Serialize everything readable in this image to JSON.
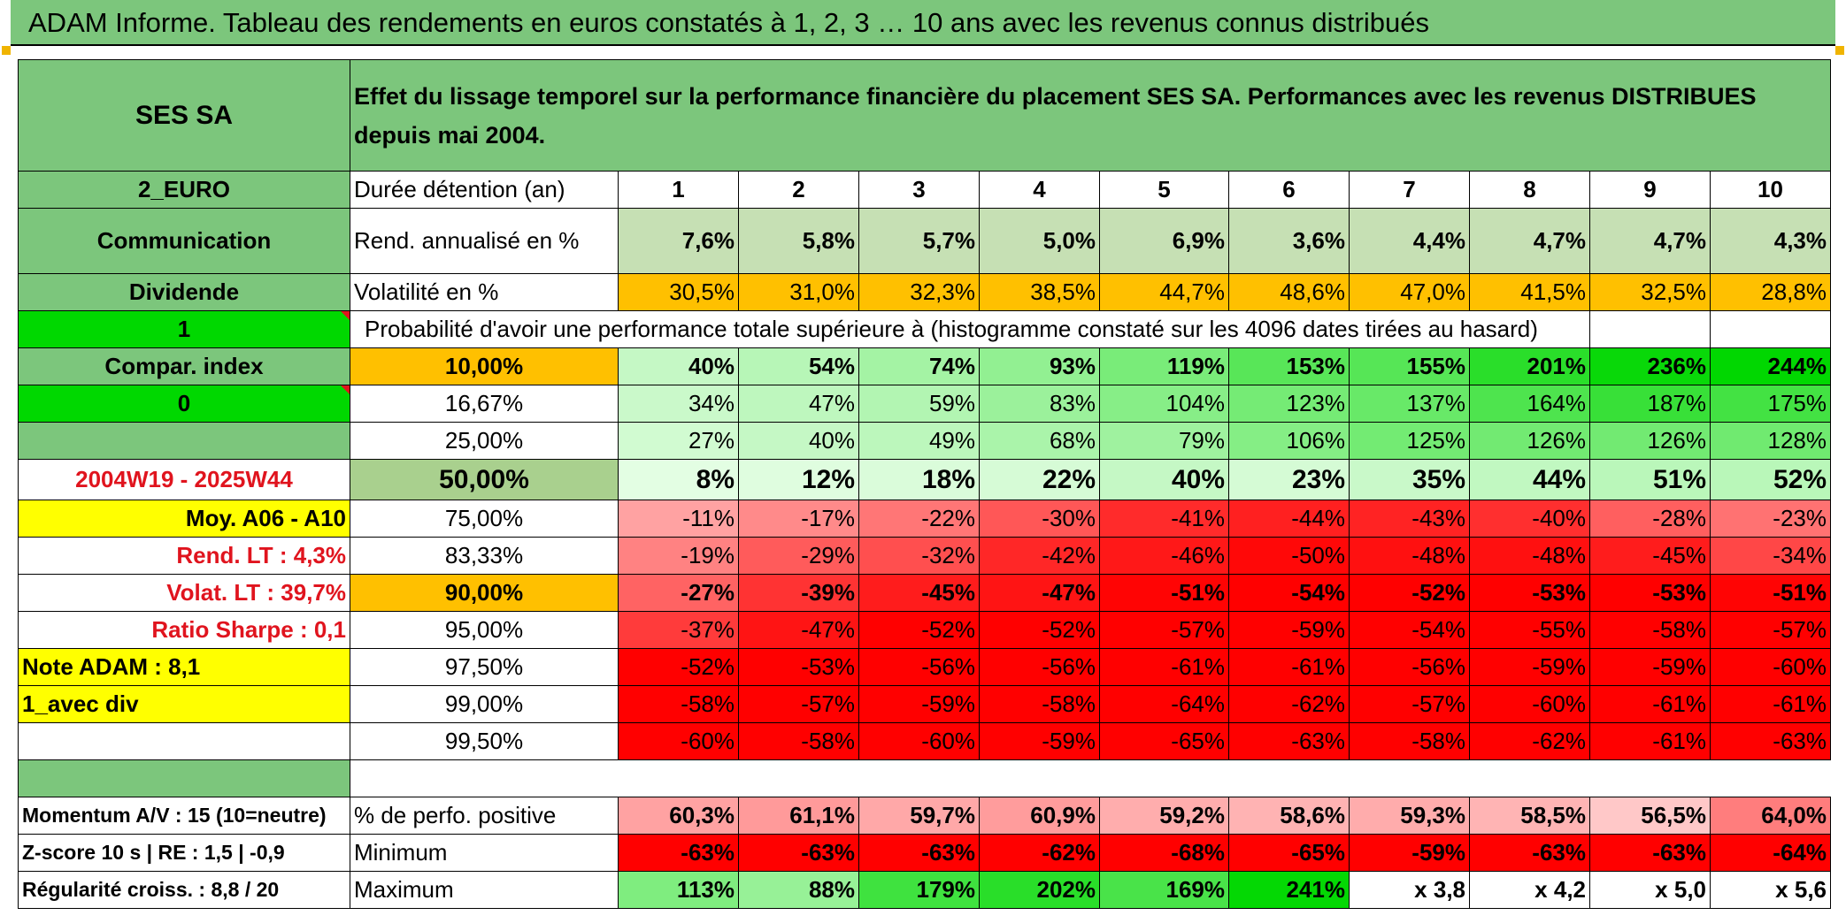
{
  "title": "ADAM Informe. Tableau des rendements en euros constatés à 1, 2, 3 … 10 ans avec les revenus connus distribués",
  "colors": {
    "header_green": "#7cc67c",
    "bright_green": "#00d800",
    "orange": "#ffc000",
    "yellow": "#ffff00",
    "red_text": "#e0141e"
  },
  "side": {
    "name": "SES SA",
    "currency": "2_EURO",
    "sector": "Communication",
    "type": "Dividende",
    "flag_one": "1",
    "compar_index": "Compar. index",
    "flag_zero": "0",
    "period": "2004W19 - 2025W44",
    "moy": "Moy. A06 - A10",
    "rend_lt": "Rend. LT :   4,3%",
    "volat_lt": "Volat. LT :   39,7%",
    "sharpe": "Ratio Sharpe :    0,1",
    "note": "Note ADAM : 8,1",
    "div": "1_avec div"
  },
  "header": {
    "description": "Effet du lissage temporel sur la performance financière du placement SES SA. Performances avec les revenus DISTRIBUES depuis mai 2004.",
    "duration_label": "Durée détention (an)",
    "years": [
      "1",
      "2",
      "3",
      "4",
      "5",
      "6",
      "7",
      "8",
      "9",
      "10"
    ]
  },
  "rend": {
    "label": "Rend. annualisé en %",
    "values": [
      "7,6%",
      "5,8%",
      "5,7%",
      "5,0%",
      "6,9%",
      "3,6%",
      "4,4%",
      "4,7%",
      "4,7%",
      "4,3%"
    ]
  },
  "vol": {
    "label": "Volatilité en %",
    "values": [
      "30,5%",
      "31,0%",
      "32,3%",
      "38,5%",
      "44,7%",
      "48,6%",
      "47,0%",
      "41,5%",
      "32,5%",
      "28,8%"
    ]
  },
  "prob_title": "Probabilité d'avoir une performance totale supérieure à (histogramme constaté sur les 4096 dates tirées au hasard)",
  "prob_rows": [
    {
      "pct": "10,00%",
      "values": [
        "40%",
        "54%",
        "74%",
        "93%",
        "119%",
        "153%",
        "155%",
        "201%",
        "236%",
        "244%"
      ]
    },
    {
      "pct": "16,67%",
      "values": [
        "34%",
        "47%",
        "59%",
        "83%",
        "104%",
        "123%",
        "137%",
        "164%",
        "187%",
        "175%"
      ]
    },
    {
      "pct": "25,00%",
      "values": [
        "27%",
        "40%",
        "49%",
        "68%",
        "79%",
        "106%",
        "125%",
        "126%",
        "126%",
        "128%"
      ]
    },
    {
      "pct": "50,00%",
      "values": [
        "8%",
        "12%",
        "18%",
        "22%",
        "40%",
        "23%",
        "35%",
        "44%",
        "51%",
        "52%"
      ]
    },
    {
      "pct": "75,00%",
      "values": [
        "-11%",
        "-17%",
        "-22%",
        "-30%",
        "-41%",
        "-44%",
        "-43%",
        "-40%",
        "-28%",
        "-23%"
      ]
    },
    {
      "pct": "83,33%",
      "values": [
        "-19%",
        "-29%",
        "-32%",
        "-42%",
        "-46%",
        "-50%",
        "-48%",
        "-48%",
        "-45%",
        "-34%"
      ]
    },
    {
      "pct": "90,00%",
      "values": [
        "-27%",
        "-39%",
        "-45%",
        "-47%",
        "-51%",
        "-54%",
        "-52%",
        "-53%",
        "-53%",
        "-51%"
      ]
    },
    {
      "pct": "95,00%",
      "values": [
        "-37%",
        "-47%",
        "-52%",
        "-52%",
        "-57%",
        "-59%",
        "-54%",
        "-55%",
        "-58%",
        "-57%"
      ]
    },
    {
      "pct": "97,50%",
      "values": [
        "-52%",
        "-53%",
        "-56%",
        "-56%",
        "-61%",
        "-61%",
        "-56%",
        "-59%",
        "-59%",
        "-60%"
      ]
    },
    {
      "pct": "99,00%",
      "values": [
        "-58%",
        "-57%",
        "-59%",
        "-58%",
        "-64%",
        "-62%",
        "-57%",
        "-60%",
        "-61%",
        "-61%"
      ]
    },
    {
      "pct": "99,50%",
      "values": [
        "-60%",
        "-58%",
        "-60%",
        "-59%",
        "-65%",
        "-63%",
        "-58%",
        "-62%",
        "-61%",
        "-63%"
      ]
    }
  ],
  "bottom": {
    "momentum": "Momentum A/V : 15 (10=neutre)",
    "zscore": "Z-score 10 s | RE : 1,5 | -0,9",
    "regularite": "Régularité croiss. : 8,8 / 20",
    "positive_label": "% de perfo. positive",
    "positive_values": [
      "60,3%",
      "61,1%",
      "59,7%",
      "60,9%",
      "59,2%",
      "58,6%",
      "59,3%",
      "58,5%",
      "56,5%",
      "64,0%"
    ],
    "min_label": "Minimum",
    "min_values": [
      "-63%",
      "-63%",
      "-63%",
      "-62%",
      "-68%",
      "-65%",
      "-59%",
      "-63%",
      "-63%",
      "-64%"
    ],
    "max_label": "Maximum",
    "max_values": [
      "113%",
      "88%",
      "179%",
      "202%",
      "169%",
      "241%",
      "x 3,8",
      "x 4,2",
      "x 5,0",
      "x 5,6"
    ]
  }
}
